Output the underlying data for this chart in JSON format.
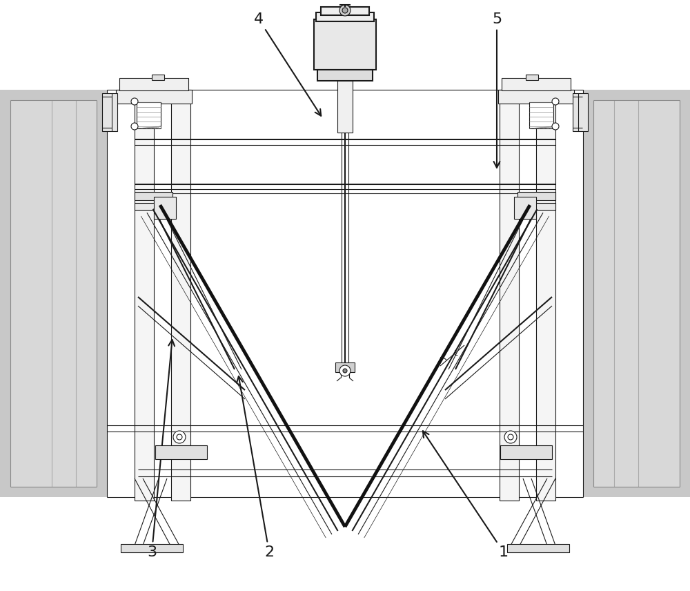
{
  "bg_color": "#ffffff",
  "line_color": "#1a1a1a",
  "fig_width": 10.0,
  "fig_height": 8.56,
  "dpi": 100,
  "gray_panel": "#c8c8c8",
  "light_gray": "#e0e0e0",
  "mid_gray": "#b0b0b0",
  "hatch_color": "#555555"
}
